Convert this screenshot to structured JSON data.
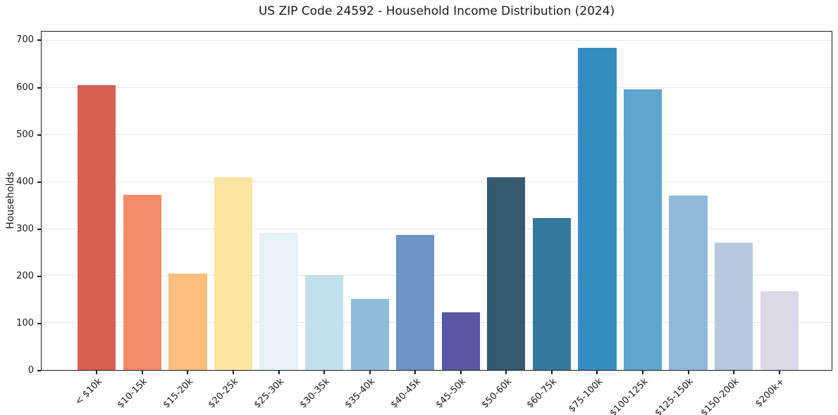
{
  "chart_data": {
    "type": "bar",
    "title": "US ZIP Code 24592 - Household Income Distribution (2024)",
    "xlabel": "",
    "ylabel": "Households",
    "ylim": [
      0,
      720
    ],
    "yticks": [
      0,
      100,
      200,
      300,
      400,
      500,
      600,
      700
    ],
    "grid": "horizontal",
    "legend": "none",
    "categories": [
      "< $10k",
      "$10-15k",
      "$15-20k",
      "$20-25k",
      "$25-30k",
      "$30-35k",
      "$35-40k",
      "$40-45k",
      "$45-50k",
      "$50-60k",
      "$60-75k",
      "$75-100k",
      "$100-125k",
      "$125-150k",
      "$150-200k",
      "$200k+"
    ],
    "values": [
      604,
      371,
      204,
      408,
      291,
      202,
      150,
      286,
      122,
      408,
      322,
      683,
      595,
      370,
      270,
      167
    ],
    "bar_colors": [
      "#d95f52",
      "#f48a69",
      "#fcbe7d",
      "#fde5a0",
      "#e7f2f7",
      "#c3e1ed",
      "#8ebcdb",
      "#6c94c5",
      "#5b57a7",
      "#365a70",
      "#35789d",
      "#358cc1",
      "#5ea6cd",
      "#90badc",
      "#b6c9de",
      "#dad9e8"
    ]
  }
}
